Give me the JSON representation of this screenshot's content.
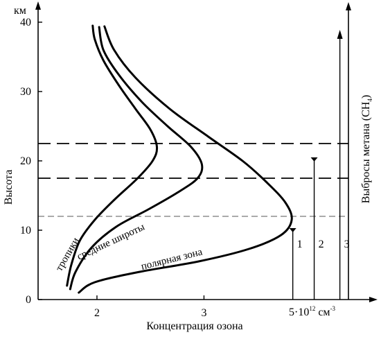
{
  "chart_data": {
    "type": "line",
    "title": "",
    "xlabel": "Концентрация озона",
    "ylabel": "Высота",
    "y_unit": "км",
    "x_unit_prefix": "5·10",
    "x_unit_exp": "12",
    "x_unit_suffix": " см",
    "x_unit_suffix_exp": "-3",
    "right_axis_label": "Выбросы метана (CH",
    "right_axis_label_sub": "4",
    "right_axis_label_end": ")",
    "xlim": [
      1.45,
      4.35
    ],
    "ylim": [
      0,
      42
    ],
    "x_ticks": [
      {
        "value": 2,
        "label": "2"
      },
      {
        "value": 3,
        "label": "3"
      }
    ],
    "y_ticks": [
      {
        "value": 0,
        "label": "0"
      },
      {
        "value": 10,
        "label": "10"
      },
      {
        "value": 20,
        "label": "20"
      },
      {
        "value": 30,
        "label": "30"
      },
      {
        "value": 40,
        "label": "40"
      }
    ],
    "series": [
      {
        "name": "тропики",
        "points": [
          [
            1.72,
            2.0
          ],
          [
            1.76,
            5.0
          ],
          [
            1.84,
            8.5
          ],
          [
            1.98,
            11.5
          ],
          [
            2.17,
            14.5
          ],
          [
            2.38,
            17.5
          ],
          [
            2.52,
            20.0
          ],
          [
            2.56,
            22.0
          ],
          [
            2.5,
            24.5
          ],
          [
            2.36,
            27.5
          ],
          [
            2.2,
            31.0
          ],
          [
            2.06,
            34.5
          ],
          [
            1.98,
            37.5
          ],
          [
            1.96,
            39.5
          ]
        ]
      },
      {
        "name": "средние широты",
        "points": [
          [
            1.75,
            1.5
          ],
          [
            1.8,
            4.0
          ],
          [
            1.95,
            7.5
          ],
          [
            2.18,
            10.5
          ],
          [
            2.48,
            13.0
          ],
          [
            2.76,
            15.5
          ],
          [
            2.94,
            17.5
          ],
          [
            2.98,
            19.5
          ],
          [
            2.88,
            22.0
          ],
          [
            2.66,
            25.0
          ],
          [
            2.42,
            28.5
          ],
          [
            2.2,
            32.5
          ],
          [
            2.06,
            36.0
          ],
          [
            2.02,
            39.3
          ]
        ]
      },
      {
        "name": "полярная зона",
        "points": [
          [
            1.83,
            1.0
          ],
          [
            1.98,
            2.5
          ],
          [
            2.4,
            4.0
          ],
          [
            2.95,
            5.5
          ],
          [
            3.42,
            7.3
          ],
          [
            3.72,
            9.3
          ],
          [
            3.82,
            11.5
          ],
          [
            3.76,
            14.0
          ],
          [
            3.58,
            17.0
          ],
          [
            3.36,
            20.0
          ],
          [
            3.04,
            23.5
          ],
          [
            2.68,
            27.5
          ],
          [
            2.36,
            32.0
          ],
          [
            2.16,
            36.0
          ],
          [
            2.07,
            39.4
          ]
        ]
      }
    ],
    "horizontal_lines": [
      {
        "y": 22.5,
        "style": "dashed"
      },
      {
        "y": 17.5,
        "style": "dashed"
      },
      {
        "y": 12.0,
        "style": "thin-dashed"
      }
    ],
    "vertical_markers": [
      {
        "label": "1",
        "x": 3.83,
        "top": 10.3,
        "head": "tee"
      },
      {
        "label": "2",
        "x": 4.03,
        "top": 20.5,
        "head": "tee"
      },
      {
        "label": "3",
        "x": 4.27,
        "top": 38.5,
        "head": "arrow"
      }
    ]
  }
}
